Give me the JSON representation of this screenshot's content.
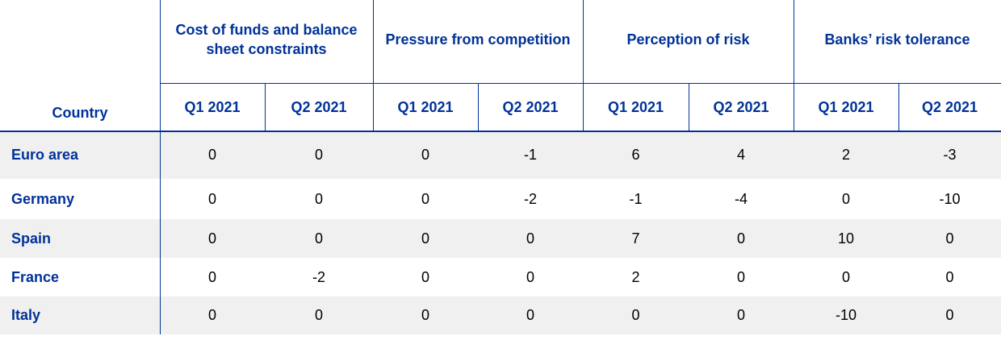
{
  "table": {
    "corner": "Country",
    "groups": [
      "Cost of funds and balance sheet constraints",
      "Pressure from competition",
      "Perception of risk",
      "Banks’ risk tolerance"
    ],
    "subheaders": [
      "Q1 2021",
      "Q2 2021",
      "Q1 2021",
      "Q2 2021",
      "Q1 2021",
      "Q2 2021",
      "Q1 2021",
      "Q2 2021"
    ],
    "rows": [
      {
        "country": "Euro area",
        "values": [
          0,
          0,
          0,
          -1,
          6,
          4,
          2,
          -3
        ]
      },
      {
        "country": "Germany",
        "values": [
          0,
          0,
          0,
          -2,
          -1,
          -4,
          0,
          -10
        ]
      },
      {
        "country": "Spain",
        "values": [
          0,
          0,
          0,
          0,
          7,
          0,
          10,
          0
        ]
      },
      {
        "country": "France",
        "values": [
          0,
          -2,
          0,
          0,
          2,
          0,
          0,
          0
        ]
      },
      {
        "country": "Italy",
        "values": [
          0,
          0,
          0,
          0,
          0,
          0,
          -10,
          0
        ]
      }
    ]
  }
}
